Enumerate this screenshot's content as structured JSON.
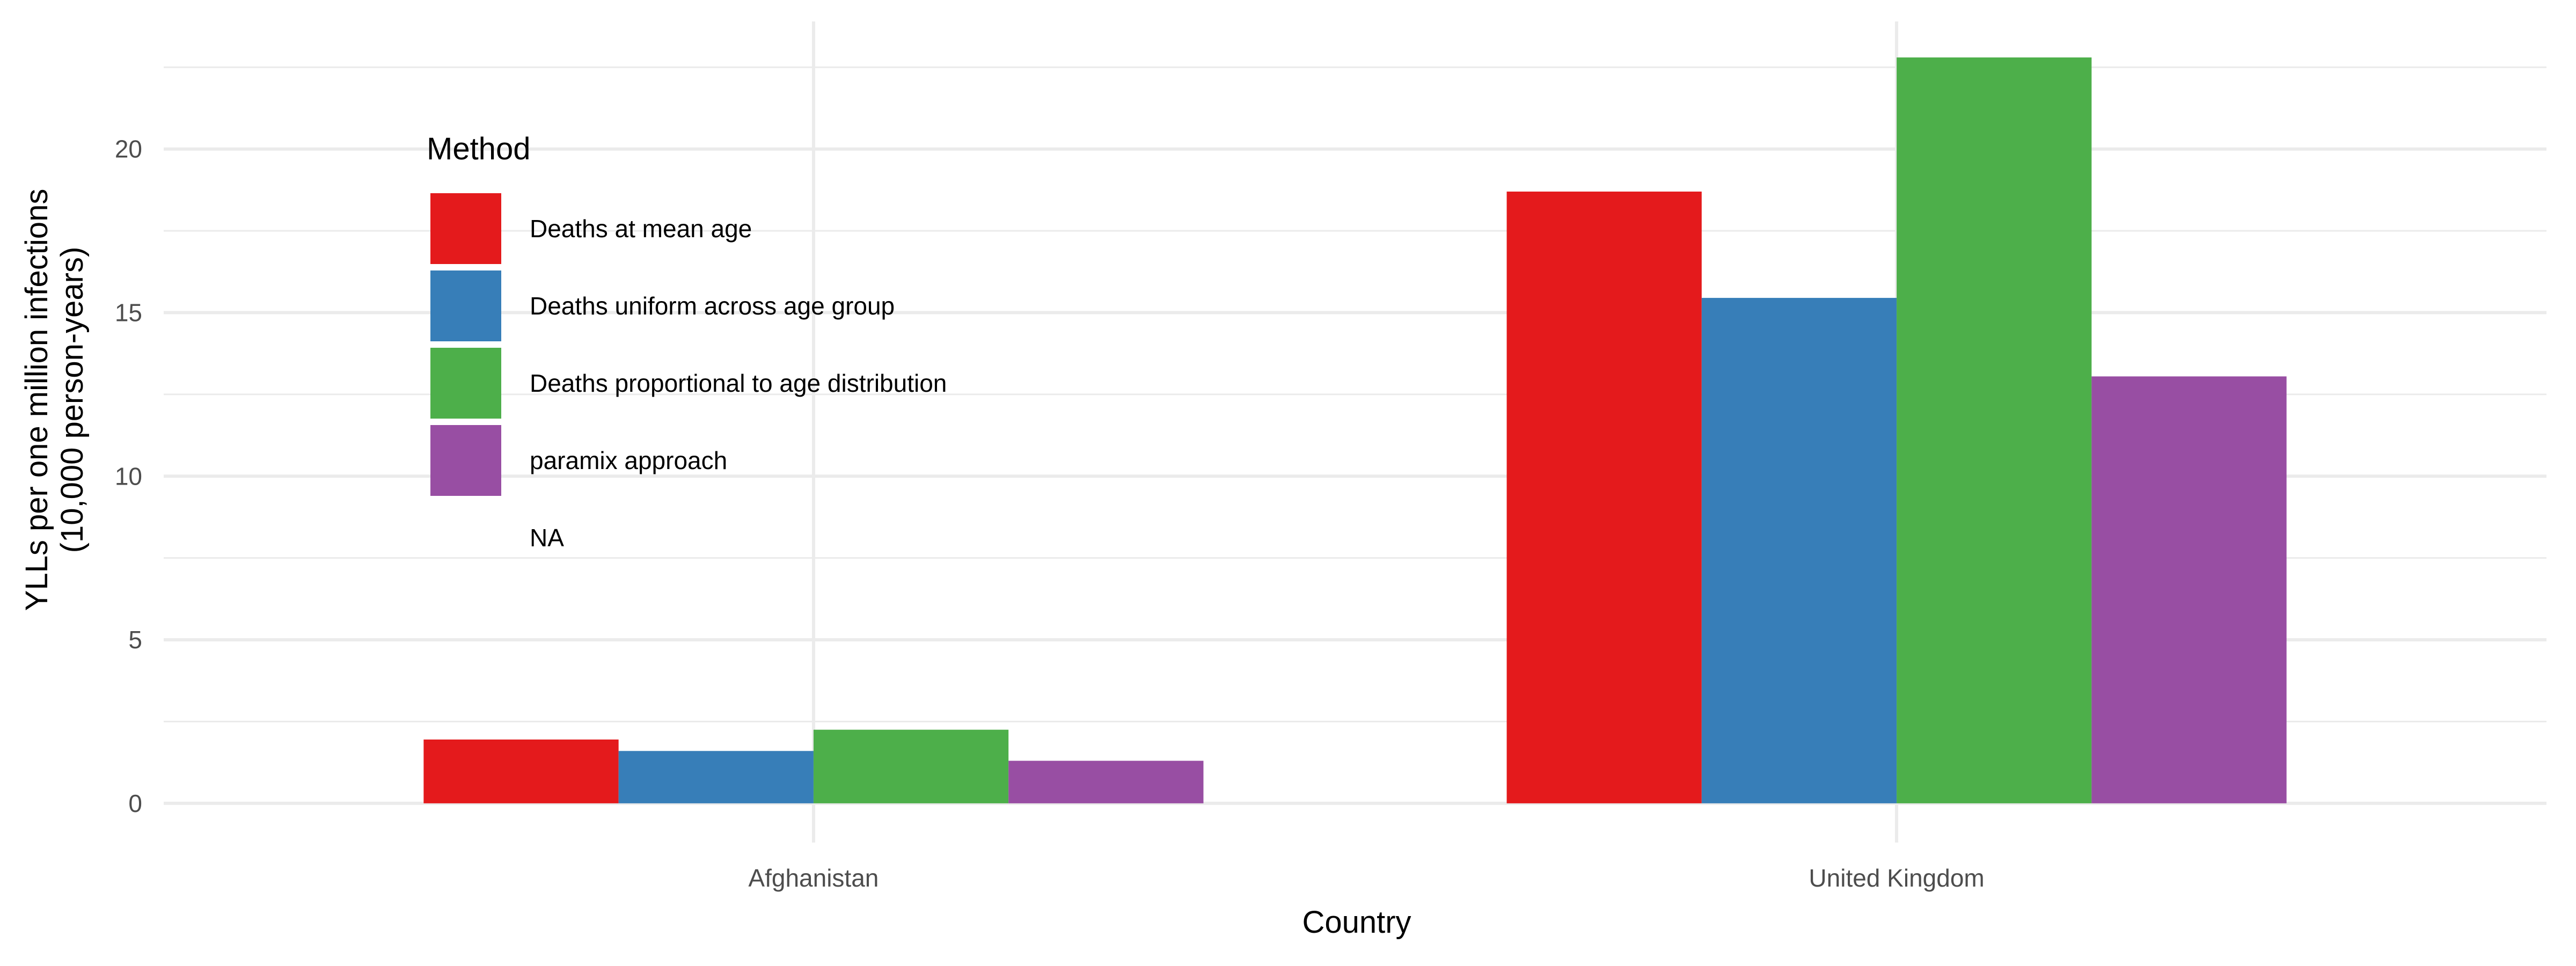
{
  "chart_data": {
    "type": "bar",
    "categories": [
      "Afghanistan",
      "United Kingdom"
    ],
    "series": [
      {
        "name": "Deaths at mean age",
        "color": "#e41a1c",
        "values": [
          1.95,
          18.7
        ]
      },
      {
        "name": "Deaths uniform across age group",
        "color": "#377eb8",
        "values": [
          1.6,
          15.45
        ]
      },
      {
        "name": "Deaths proportional to age distribution",
        "color": "#4daf4a",
        "values": [
          2.25,
          22.8
        ]
      },
      {
        "name": "paramix approach",
        "color": "#984ea3",
        "values": [
          1.3,
          13.05
        ]
      }
    ],
    "legend_extra": "NA",
    "title": "",
    "xlabel": "Country",
    "ylabel_lines": [
      "YLLs per one million infections",
      "(10,000 person-years)"
    ],
    "legend_title": "Method",
    "legend_position": "top-left (inside plot)",
    "ylim": [
      -1.2,
      23.9
    ],
    "yticks": [
      0,
      5,
      10,
      15,
      20
    ],
    "ytick_labels": [
      "0",
      "5",
      "10",
      "15",
      "20"
    ],
    "grid": true
  }
}
